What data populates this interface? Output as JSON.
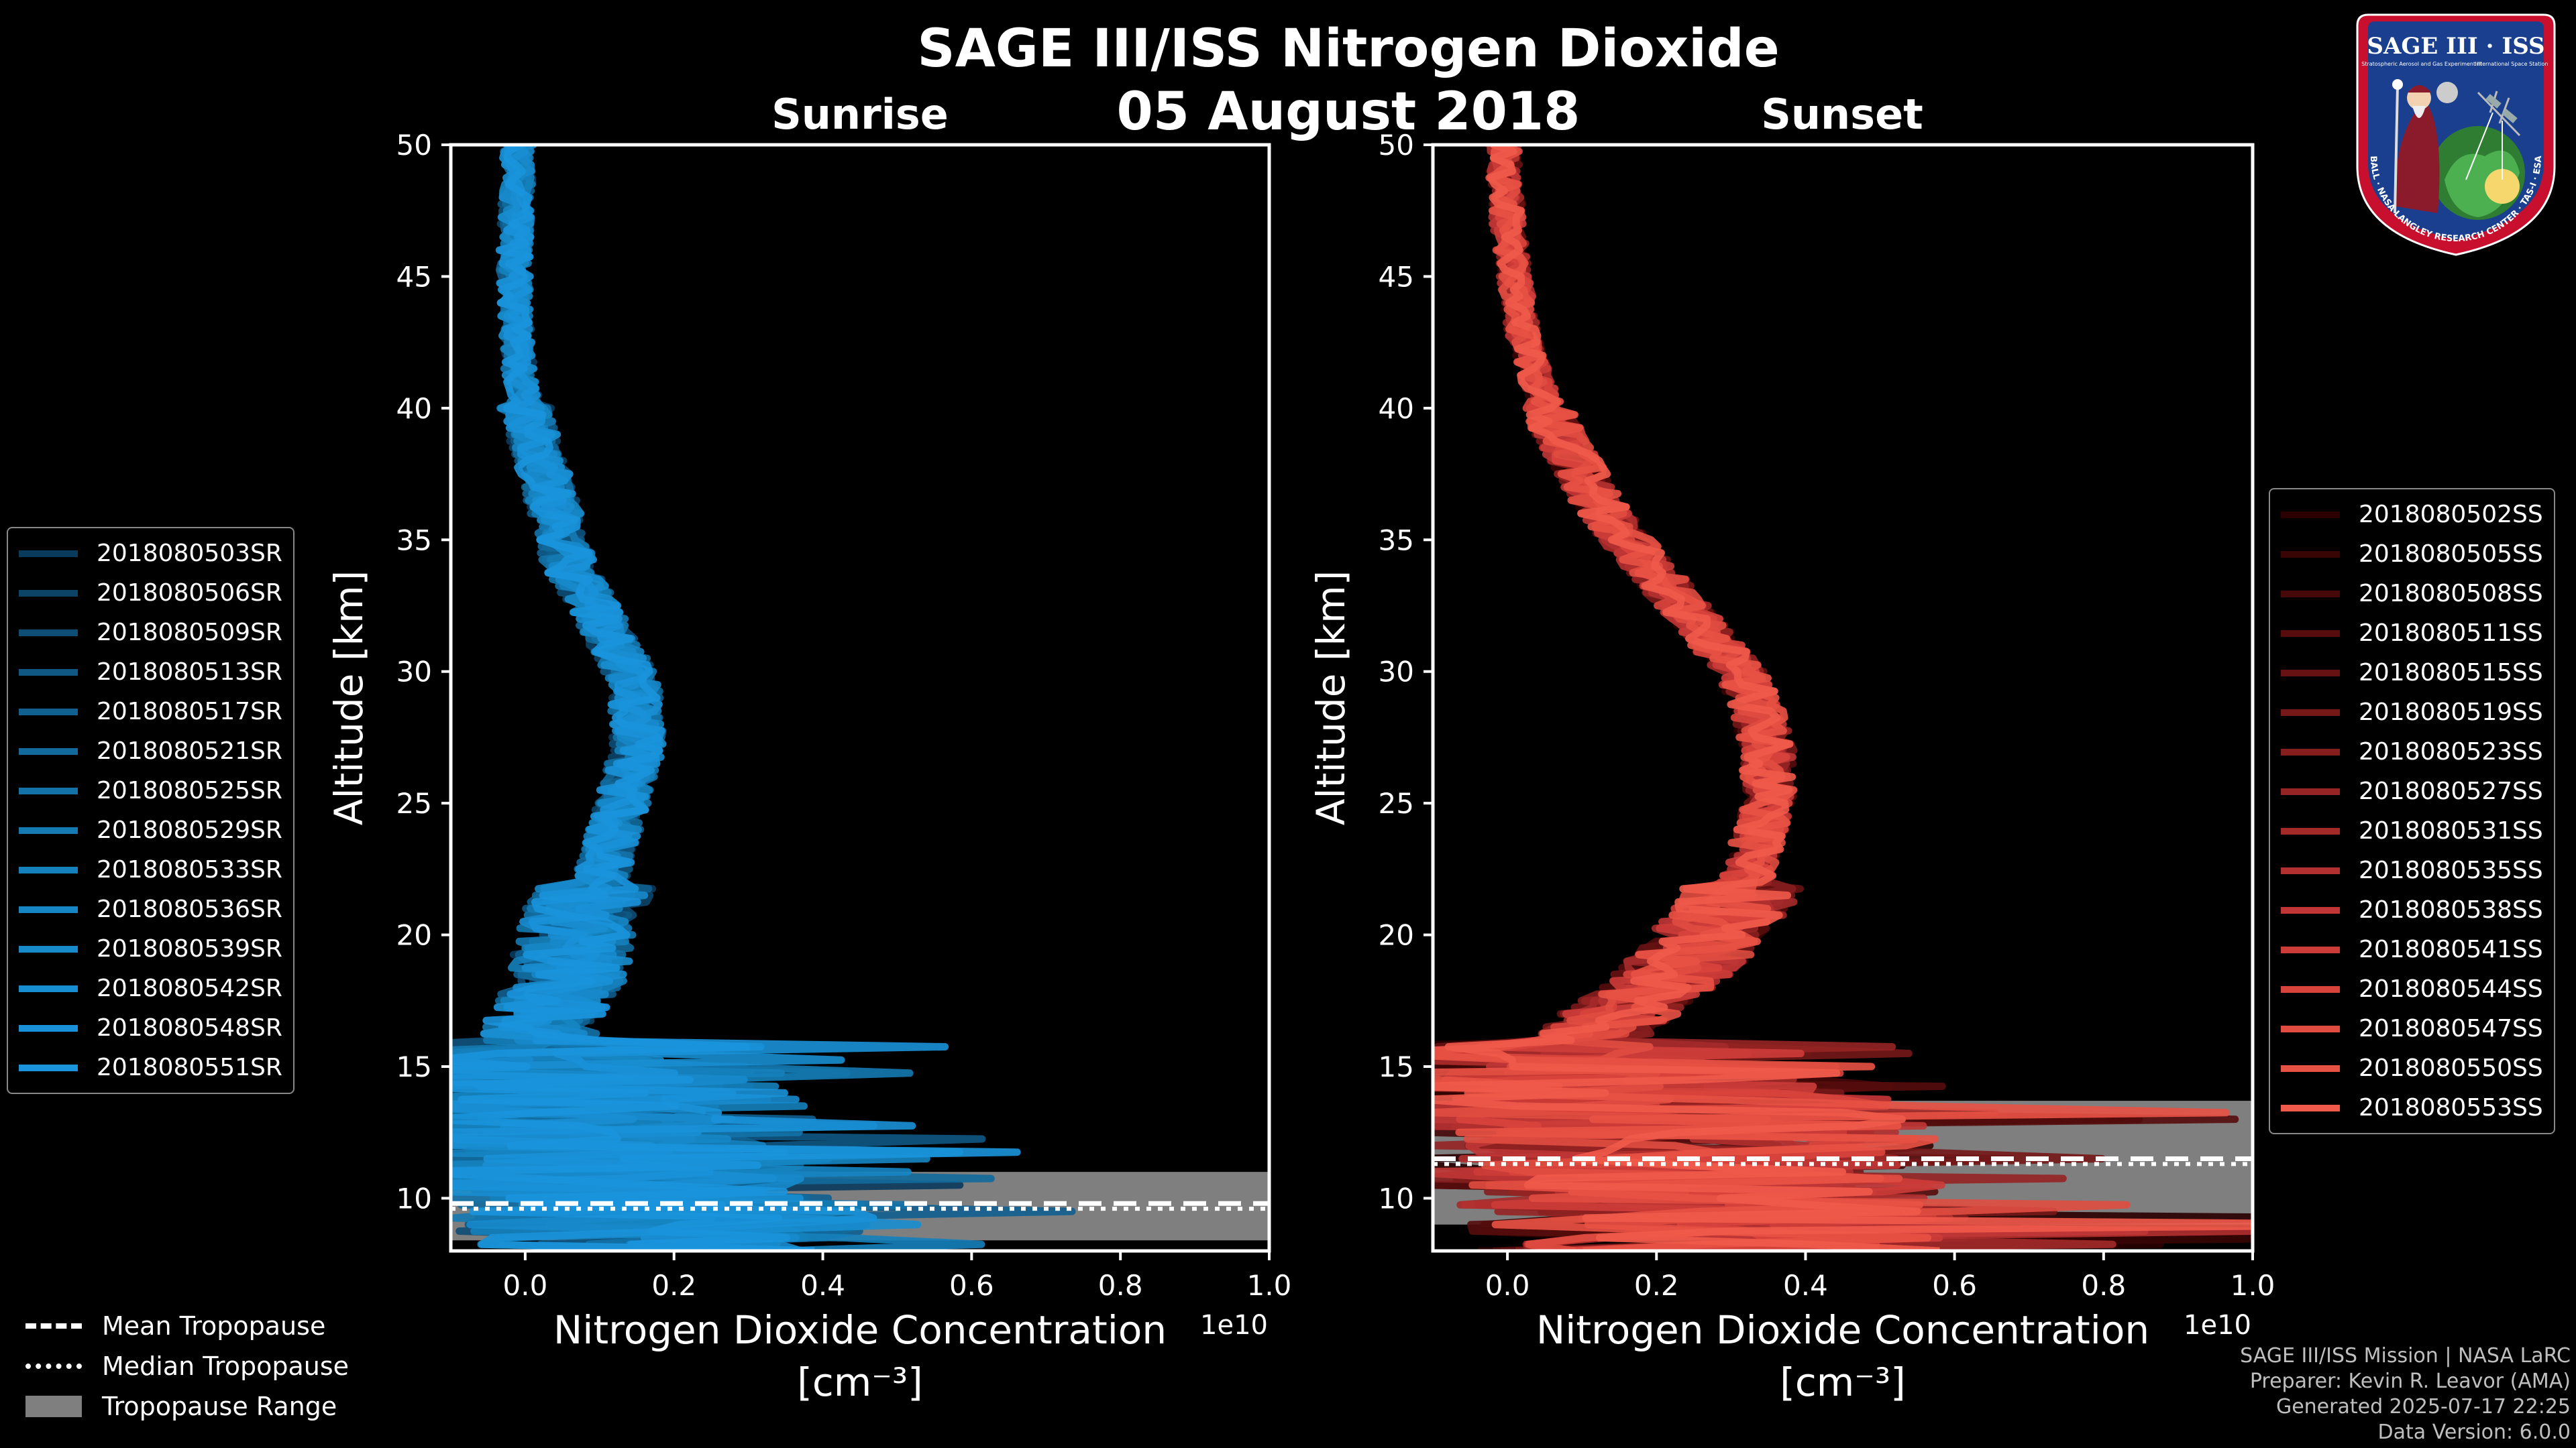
{
  "header": {
    "main_title": "SAGE III/ISS Nitrogen Dioxide",
    "date": "05 August 2018"
  },
  "footer": {
    "line1": "SAGE III/ISS Mission | NASA LaRC",
    "line2": "Preparer: Kevin R. Leavor (AMA)",
    "line3": "Generated 2025-07-17 22:25",
    "line4": "Data Version: 6.0.0"
  },
  "logo": {
    "name": "SAGE III · ISS",
    "subtitle": "Stratospheric Aerosol and Gas Experiment III",
    "subtitle2": "International Space Station",
    "ring_text": "BALL · NASA LANGLEY RESEARCH CENTER · TAS-I · ESA"
  },
  "tropopause_legend": {
    "mean": "Mean Tropopause",
    "median": "Median Tropopause",
    "range": "Tropopause Range"
  },
  "colors": {
    "sunrise": "#1a8fd8",
    "sunset": "#f05a4a",
    "tropo_range": "#7f7f7f"
  },
  "chart_data": [
    {
      "type": "line",
      "title": "Sunrise",
      "xlabel": "Nitrogen Dioxide Concentration",
      "xunit": "[cm⁻³]",
      "ylabel": "Altitude [km]",
      "xlim": [
        -0.1,
        1.0
      ],
      "ylim": [
        8,
        50
      ],
      "xticks": [
        "0.0",
        "0.2",
        "0.4",
        "0.6",
        "0.8",
        "1.0"
      ],
      "xtick_values": [
        0.0,
        0.2,
        0.4,
        0.6,
        0.8,
        1.0
      ],
      "yticks": [
        "10",
        "15",
        "20",
        "25",
        "30",
        "35",
        "40",
        "45",
        "50"
      ],
      "ytick_values": [
        10,
        15,
        20,
        25,
        30,
        35,
        40,
        45,
        50
      ],
      "x_scale_label": "1e10",
      "tropopause": {
        "mean": 9.8,
        "median": 9.6,
        "range": [
          8.4,
          11.0
        ]
      },
      "mean_profile": {
        "alt": [
          9,
          10,
          11,
          12,
          13,
          14,
          15,
          16,
          17,
          18,
          19,
          20,
          21,
          22,
          23,
          24,
          25,
          26,
          27,
          28,
          29,
          30,
          31,
          32,
          33,
          34,
          35,
          36,
          37,
          38,
          39,
          40,
          41,
          42,
          43,
          44,
          45,
          46,
          47,
          48,
          49,
          50
        ],
        "no2": [
          0.2,
          0.15,
          0.05,
          0.06,
          0.08,
          0.07,
          0.05,
          0.02,
          0.03,
          0.05,
          0.06,
          0.07,
          0.08,
          0.1,
          0.11,
          0.12,
          0.13,
          0.14,
          0.15,
          0.15,
          0.15,
          0.14,
          0.12,
          0.1,
          0.08,
          0.06,
          0.05,
          0.04,
          0.03,
          0.02,
          0.01,
          0.0,
          -0.005,
          -0.01,
          -0.012,
          -0.013,
          -0.014,
          -0.014,
          -0.013,
          -0.012,
          -0.01,
          -0.01
        ]
      },
      "series": [
        {
          "name": "2018080503SR",
          "color": "#0a3a5c"
        },
        {
          "name": "2018080506SR",
          "color": "#0c4468"
        },
        {
          "name": "2018080509SR",
          "color": "#0e4e76"
        },
        {
          "name": "2018080513SR",
          "color": "#105884"
        },
        {
          "name": "2018080517SR",
          "color": "#116190"
        },
        {
          "name": "2018080521SR",
          "color": "#126a9c"
        },
        {
          "name": "2018080525SR",
          "color": "#1372a8"
        },
        {
          "name": "2018080529SR",
          "color": "#147ab2"
        },
        {
          "name": "2018080533SR",
          "color": "#1581bc"
        },
        {
          "name": "2018080536SR",
          "color": "#1686c4"
        },
        {
          "name": "2018080539SR",
          "color": "#178acc"
        },
        {
          "name": "2018080542SR",
          "color": "#188ed2"
        },
        {
          "name": "2018080548SR",
          "color": "#1991d8"
        },
        {
          "name": "2018080551SR",
          "color": "#1a94dc"
        }
      ]
    },
    {
      "type": "line",
      "title": "Sunset",
      "xlabel": "Nitrogen Dioxide Concentration",
      "xunit": "[cm⁻³]",
      "ylabel": "Altitude [km]",
      "xlim": [
        -0.1,
        1.0
      ],
      "ylim": [
        8,
        50
      ],
      "xticks": [
        "0.0",
        "0.2",
        "0.4",
        "0.6",
        "0.8",
        "1.0"
      ],
      "xtick_values": [
        0.0,
        0.2,
        0.4,
        0.6,
        0.8,
        1.0
      ],
      "yticks": [
        "10",
        "15",
        "20",
        "25",
        "30",
        "35",
        "40",
        "45",
        "50"
      ],
      "ytick_values": [
        10,
        15,
        20,
        25,
        30,
        35,
        40,
        45,
        50
      ],
      "x_scale_label": "1e10",
      "tropopause": {
        "mean": 11.5,
        "median": 11.3,
        "range": [
          9.0,
          13.7
        ]
      },
      "mean_profile": {
        "alt": [
          9,
          10,
          11,
          12,
          13,
          14,
          15,
          16,
          17,
          18,
          19,
          20,
          21,
          22,
          23,
          24,
          25,
          26,
          27,
          28,
          29,
          30,
          31,
          32,
          33,
          34,
          35,
          36,
          37,
          38,
          39,
          40,
          41,
          42,
          43,
          44,
          45,
          46,
          47,
          48,
          49,
          50
        ],
        "no2": [
          0.3,
          0.25,
          0.2,
          0.22,
          0.2,
          0.15,
          0.1,
          0.1,
          0.15,
          0.2,
          0.24,
          0.27,
          0.3,
          0.32,
          0.33,
          0.34,
          0.35,
          0.35,
          0.35,
          0.34,
          0.33,
          0.31,
          0.28,
          0.25,
          0.22,
          0.19,
          0.16,
          0.13,
          0.11,
          0.09,
          0.07,
          0.055,
          0.04,
          0.03,
          0.02,
          0.015,
          0.01,
          0.005,
          0.0,
          0.0,
          -0.005,
          -0.005
        ]
      },
      "series": [
        {
          "name": "2018080502SS",
          "color": "#2a0000"
        },
        {
          "name": "2018080505SS",
          "color": "#380404"
        },
        {
          "name": "2018080508SS",
          "color": "#460808"
        },
        {
          "name": "2018080511SS",
          "color": "#560c0c"
        },
        {
          "name": "2018080515SS",
          "color": "#661212"
        },
        {
          "name": "2018080519SS",
          "color": "#761818"
        },
        {
          "name": "2018080523SS",
          "color": "#861e1e"
        },
        {
          "name": "2018080527SS",
          "color": "#962424"
        },
        {
          "name": "2018080531SS",
          "color": "#a42a2a"
        },
        {
          "name": "2018080535SS",
          "color": "#b23030"
        },
        {
          "name": "2018080538SS",
          "color": "#c03636"
        },
        {
          "name": "2018080541SS",
          "color": "#cc3c38"
        },
        {
          "name": "2018080544SS",
          "color": "#d8443c"
        },
        {
          "name": "2018080547SS",
          "color": "#e04c40"
        },
        {
          "name": "2018080550SS",
          "color": "#e85244"
        },
        {
          "name": "2018080553SS",
          "color": "#f05a4a"
        }
      ]
    }
  ]
}
